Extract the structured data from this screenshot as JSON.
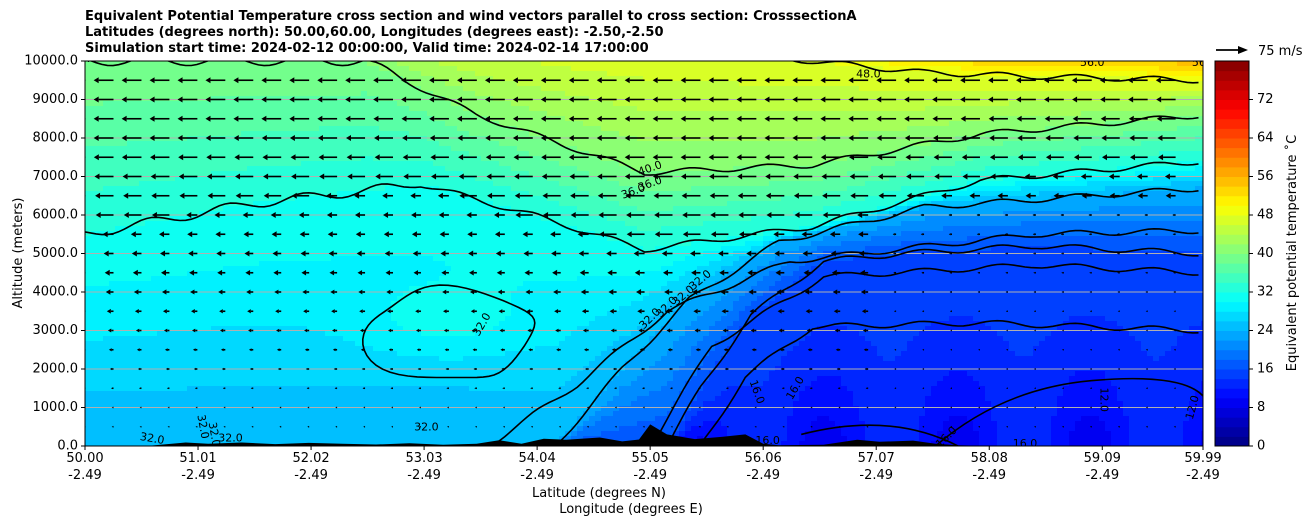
{
  "chart_data": {
    "type": "heatmap",
    "title_lines": [
      "Equivalent Potential Temperature cross section and wind vectors parallel to cross section: CrosssectionA",
      "Latitudes (degrees north): 50.00,60.00, Longitudes (degrees east): -2.50,-2.50",
      "Simulation start time: 2024-02-12 00:00:00, Valid time: 2024-02-14 17:00:00"
    ],
    "xlabel_lines": [
      "Latitude (degrees N)",
      "Longitude (degrees E)"
    ],
    "ylabel": "Altitude (meters)",
    "xlim": [
      50.0,
      59.99
    ],
    "ylim": [
      0,
      10000
    ],
    "x_ticks": [
      {
        "lat": "50.00",
        "lon": "-2.49"
      },
      {
        "lat": "51.01",
        "lon": "-2.49"
      },
      {
        "lat": "52.02",
        "lon": "-2.49"
      },
      {
        "lat": "53.03",
        "lon": "-2.49"
      },
      {
        "lat": "54.04",
        "lon": "-2.49"
      },
      {
        "lat": "55.05",
        "lon": "-2.49"
      },
      {
        "lat": "56.06",
        "lon": "-2.49"
      },
      {
        "lat": "57.07",
        "lon": "-2.49"
      },
      {
        "lat": "58.08",
        "lon": "-2.49"
      },
      {
        "lat": "59.09",
        "lon": "-2.49"
      },
      {
        "lat": "59.99",
        "lon": "-2.49"
      }
    ],
    "y_ticks": [
      "0.0",
      "1000.0",
      "2000.0",
      "3000.0",
      "4000.0",
      "5000.0",
      "6000.0",
      "7000.0",
      "8000.0",
      "9000.0",
      "10000.0"
    ],
    "y_gridlines": true,
    "colorbar": {
      "label": "Equivalent potential temperature ˚C",
      "ticks": [
        "0",
        "8",
        "16",
        "24",
        "32",
        "40",
        "48",
        "56",
        "64",
        "72"
      ],
      "range": [
        0,
        80
      ],
      "step": 2,
      "colormap": "jet"
    },
    "quiver_key": {
      "label": "75 m/s",
      "value": 75
    },
    "contour_labels": [
      "48.0",
      "48.0",
      "56.0",
      "56.0",
      "40.0",
      "36.0",
      "36.0",
      "32.0",
      "32.0",
      "32.0",
      "32.0",
      "32.0",
      "32.0",
      "32.0",
      "32.0",
      "32.0",
      "32.0",
      "16.0",
      "16.0",
      "16.0",
      "16.0",
      "16.0",
      "12.0",
      "12.0"
    ],
    "contour_levels": [
      12,
      16,
      32,
      36,
      40,
      48,
      56
    ],
    "surface_terrain": "black terrain silhouette along the base, peaks near 55.1 N and 56.0 N",
    "wind_pattern": "strong easterly (leftward) vectors above 7000 m north of ~55 N and across the upper layer, weakening to near zero below 3000 m and in the north-east"
  }
}
